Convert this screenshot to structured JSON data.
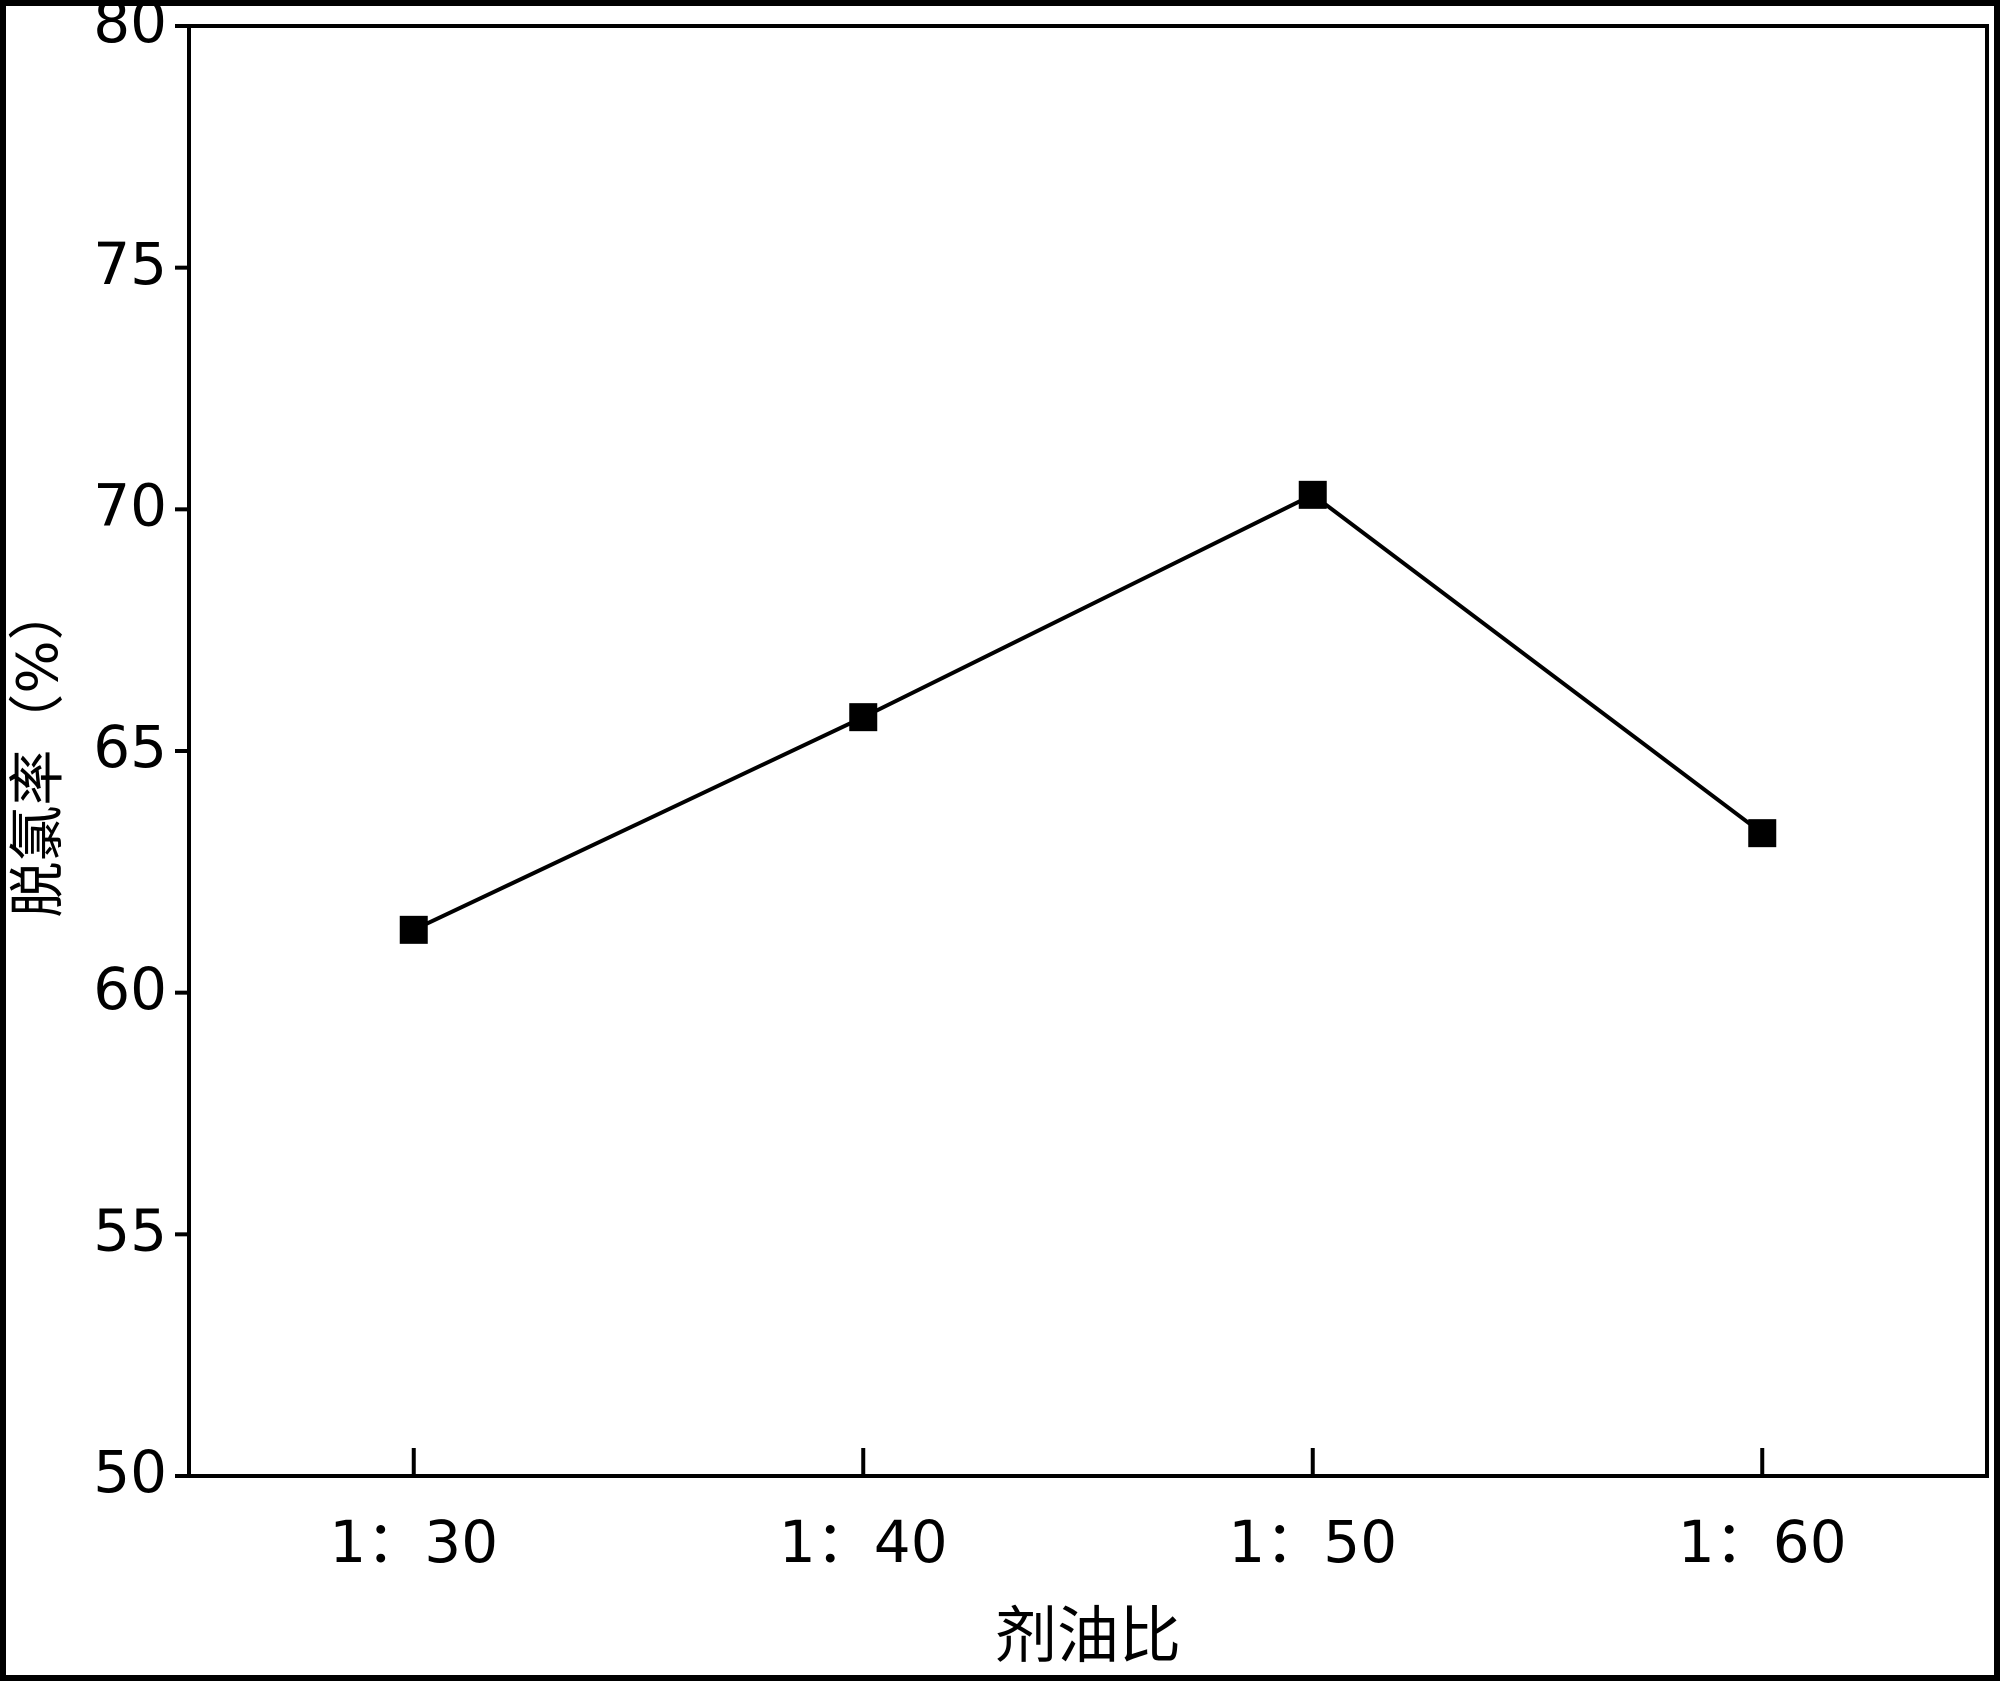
{
  "chart_data": {
    "type": "line",
    "x_label": "剂油比",
    "y_label": "脱氯率（%）",
    "categories": [
      "1：30",
      "1：40",
      "1：50",
      "1：60"
    ],
    "series": [
      {
        "color": "#000000",
        "values": [
          61.3,
          65.7,
          70.3,
          63.3
        ]
      }
    ],
    "ylim": [
      50,
      80
    ],
    "yticks": [
      50,
      55,
      60,
      65,
      70,
      75,
      80
    ]
  }
}
